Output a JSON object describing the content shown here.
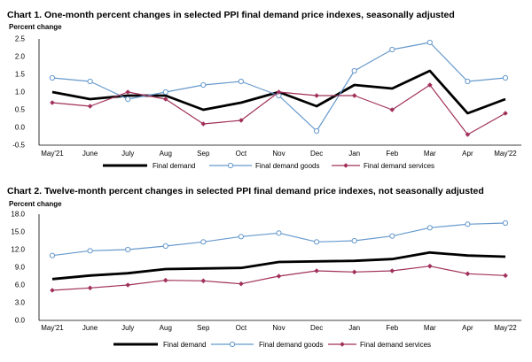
{
  "chart_data": [
    {
      "type": "line",
      "title": "Chart 1. One-month percent changes in selected PPI final demand price indexes, seasonally adjusted",
      "ylabel": "Percent change",
      "ylim": [
        -0.5,
        2.5
      ],
      "yticks": [
        "2.5",
        "2.0",
        "1.5",
        "1.0",
        "0.5",
        "0.0",
        "-0.5"
      ],
      "grid": false,
      "legend_position": "bottom",
      "categories": [
        "May'21",
        "June",
        "July",
        "Aug",
        "Sep",
        "Oct",
        "Nov",
        "Dec",
        "Jan",
        "Feb",
        "Mar",
        "Apr",
        "May'22"
      ],
      "series": [
        {
          "name": "Final demand",
          "color": "#000000",
          "marker": "none",
          "values": [
            1.0,
            0.8,
            0.9,
            0.9,
            0.5,
            0.7,
            1.0,
            0.6,
            1.2,
            1.1,
            1.6,
            0.4,
            0.8
          ]
        },
        {
          "name": "Final demand goods",
          "color": "#6699cc",
          "marker": "circle",
          "values": [
            1.4,
            1.3,
            0.8,
            1.0,
            1.2,
            1.3,
            0.9,
            -0.1,
            1.6,
            2.2,
            2.4,
            1.3,
            1.4
          ]
        },
        {
          "name": "Final demand services",
          "color": "#a0305a",
          "marker": "diamond",
          "values": [
            0.7,
            0.6,
            1.0,
            0.8,
            0.1,
            0.2,
            1.0,
            0.9,
            0.9,
            0.5,
            1.2,
            -0.2,
            0.4
          ]
        }
      ]
    },
    {
      "type": "line",
      "title": "Chart 2. Twelve-month percent changes in selected PPI final demand price indexes, not seasonally adjusted",
      "ylabel": "Percent change",
      "ylim": [
        0.0,
        18.0
      ],
      "yticks": [
        "18.0",
        "15.0",
        "12.0",
        "9.0",
        "6.0",
        "3.0",
        "0.0"
      ],
      "grid": false,
      "legend_position": "bottom",
      "categories": [
        "May'21",
        "June",
        "July",
        "Aug",
        "Sep",
        "Oct",
        "Nov",
        "Dec",
        "Jan",
        "Feb",
        "Mar",
        "Apr",
        "May'22"
      ],
      "series": [
        {
          "name": "Final demand",
          "color": "#000000",
          "marker": "none",
          "values": [
            7.0,
            7.6,
            8.0,
            8.7,
            8.8,
            8.9,
            9.9,
            10.0,
            10.1,
            10.4,
            11.5,
            11.0,
            10.8
          ]
        },
        {
          "name": "Final demand goods",
          "color": "#6699cc",
          "marker": "circle",
          "values": [
            11.0,
            11.8,
            12.0,
            12.6,
            13.3,
            14.2,
            14.8,
            13.3,
            13.5,
            14.3,
            15.7,
            16.3,
            16.5
          ]
        },
        {
          "name": "Final demand services",
          "color": "#a0305a",
          "marker": "diamond",
          "values": [
            5.1,
            5.5,
            6.0,
            6.8,
            6.7,
            6.2,
            7.5,
            8.4,
            8.2,
            8.4,
            9.2,
            7.9,
            7.6
          ]
        }
      ]
    }
  ]
}
